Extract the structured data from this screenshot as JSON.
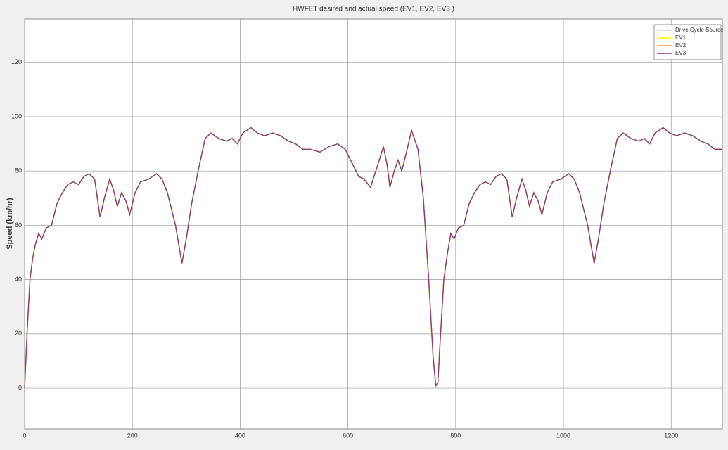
{
  "chart_data": {
    "type": "line",
    "title": "HWFET desired and actual speed (EV1, EV2, EV3 )",
    "y_label": "Speed (km/hr)",
    "x": [
      0,
      5,
      10,
      15,
      20,
      26,
      32,
      40,
      50,
      60,
      70,
      80,
      90,
      100,
      110,
      120,
      130,
      140,
      148,
      158,
      165,
      172,
      180,
      188,
      195,
      205,
      215,
      230,
      245,
      255,
      265,
      280,
      292,
      300,
      310,
      322,
      335,
      346,
      360,
      375,
      385,
      395,
      405,
      420,
      432,
      445,
      460,
      475,
      490,
      503,
      516,
      530,
      548,
      565,
      581,
      595,
      610,
      620,
      630,
      642,
      655,
      666,
      673,
      678,
      686,
      693,
      700,
      710,
      718,
      730,
      740,
      750,
      758,
      763,
      767,
      772,
      778,
      785,
      791,
      797,
      805,
      815,
      825,
      835,
      845,
      855,
      865,
      875,
      885,
      895,
      905,
      913,
      923,
      930,
      937,
      945,
      953,
      960,
      970,
      980,
      995,
      1010,
      1020,
      1030,
      1045,
      1057,
      1065,
      1075,
      1087,
      1100,
      1111,
      1125,
      1140,
      1150,
      1160,
      1170,
      1185,
      1197,
      1210,
      1225,
      1240,
      1255,
      1268,
      1281,
      1295
    ],
    "series": [
      {
        "name": "Drive Cycle Source",
        "color": "#cfcfcf",
        "values": [
          0,
          22,
          40,
          48,
          53,
          57,
          55,
          59,
          60,
          68,
          72,
          75,
          76,
          75,
          78,
          79,
          77,
          63,
          70,
          77,
          73,
          67,
          72,
          69,
          64,
          72,
          76,
          77,
          79,
          77,
          72,
          60,
          46,
          55,
          68,
          80,
          92,
          94,
          92,
          91,
          92,
          90,
          94,
          96,
          94,
          93,
          94,
          93,
          91,
          90,
          88,
          88,
          87,
          89,
          90,
          88,
          82,
          78,
          77,
          74,
          82,
          89,
          82,
          74,
          80,
          84,
          80,
          88,
          95,
          88,
          70,
          40,
          12,
          0,
          2,
          20,
          40,
          50,
          57,
          55,
          59,
          60,
          68,
          72,
          75,
          76,
          75,
          78,
          79,
          77,
          63,
          70,
          77,
          73,
          67,
          72,
          69,
          64,
          72,
          76,
          77,
          79,
          77,
          72,
          60,
          46,
          55,
          68,
          80,
          92,
          94,
          92,
          91,
          92,
          90,
          94,
          96,
          94,
          93,
          94,
          93,
          91,
          90,
          88,
          88
        ]
      },
      {
        "name": "EV1",
        "color": "#ffff00",
        "values": [
          0,
          22,
          40,
          48,
          53,
          57,
          55,
          59,
          60,
          68,
          72,
          75,
          76,
          75,
          78,
          79,
          77,
          63,
          70,
          77,
          73,
          67,
          72,
          69,
          64,
          72,
          76,
          77,
          79,
          77,
          72,
          60,
          46,
          55,
          68,
          80,
          92,
          94,
          92,
          91,
          92,
          90,
          94,
          96,
          94,
          93,
          94,
          93,
          91,
          90,
          88,
          88,
          87,
          89,
          90,
          88,
          82,
          78,
          77,
          74,
          82,
          89,
          82,
          74,
          80,
          84,
          80,
          88,
          95,
          88,
          70,
          40,
          12,
          1,
          2,
          20,
          40,
          50,
          57,
          55,
          59,
          60,
          68,
          72,
          75,
          76,
          75,
          78,
          79,
          77,
          63,
          70,
          77,
          73,
          67,
          72,
          69,
          64,
          72,
          76,
          77,
          79,
          77,
          72,
          60,
          46,
          55,
          68,
          80,
          92,
          94,
          92,
          91,
          92,
          90,
          94,
          96,
          94,
          93,
          94,
          93,
          91,
          90,
          88,
          88
        ]
      },
      {
        "name": "EV2",
        "color": "#eda512",
        "values": [
          0,
          22,
          40,
          48,
          53,
          57,
          55,
          59,
          60,
          68,
          72,
          75,
          76,
          75,
          78,
          79,
          77,
          63,
          70,
          77,
          73,
          67,
          72,
          69,
          64,
          72,
          76,
          77,
          79,
          77,
          72,
          60,
          46,
          55,
          68,
          80,
          92,
          94,
          92,
          91,
          92,
          90,
          94,
          96,
          94,
          93,
          94,
          93,
          91,
          90,
          88,
          88,
          87,
          89,
          90,
          88,
          82,
          78,
          77,
          74,
          82,
          89,
          82,
          74,
          80,
          84,
          80,
          88,
          95,
          88,
          70,
          40,
          12,
          1,
          2,
          20,
          40,
          50,
          57,
          55,
          59,
          60,
          68,
          72,
          75,
          76,
          75,
          78,
          79,
          77,
          63,
          70,
          77,
          73,
          67,
          72,
          69,
          64,
          72,
          76,
          77,
          79,
          77,
          72,
          60,
          46,
          55,
          68,
          80,
          92,
          94,
          92,
          91,
          92,
          90,
          94,
          96,
          94,
          93,
          94,
          93,
          91,
          90,
          88,
          88
        ]
      },
      {
        "name": "EV3",
        "color": "#8a3b7a",
        "values": [
          0,
          22,
          40,
          48,
          53,
          57,
          55,
          59,
          60,
          68,
          72,
          75,
          76,
          75,
          78,
          79,
          77,
          63,
          70,
          77,
          73,
          67,
          72,
          69,
          64,
          72,
          76,
          77,
          79,
          77,
          72,
          60,
          46,
          55,
          68,
          80,
          92,
          94,
          92,
          91,
          92,
          90,
          94,
          96,
          94,
          93,
          94,
          93,
          91,
          90,
          88,
          88,
          87,
          89,
          90,
          88,
          82,
          78,
          77,
          74,
          82,
          89,
          82,
          74,
          80,
          84,
          80,
          88,
          95,
          88,
          70,
          40,
          12,
          1,
          2,
          20,
          40,
          50,
          57,
          55,
          59,
          60,
          68,
          72,
          75,
          76,
          75,
          78,
          79,
          77,
          63,
          70,
          77,
          73,
          67,
          72,
          69,
          64,
          72,
          76,
          77,
          79,
          77,
          72,
          60,
          46,
          55,
          68,
          80,
          92,
          94,
          92,
          91,
          92,
          90,
          94,
          96,
          94,
          93,
          94,
          93,
          91,
          90,
          88,
          88
        ]
      }
    ],
    "xlim": [
      0,
      1295
    ],
    "ylim": [
      -15,
      136
    ],
    "xticks": [
      0,
      200,
      400,
      600,
      800,
      1000,
      1200
    ],
    "yticks": [
      0,
      20,
      40,
      60,
      80,
      100,
      120
    ],
    "grid": true,
    "legend": "top-right"
  }
}
